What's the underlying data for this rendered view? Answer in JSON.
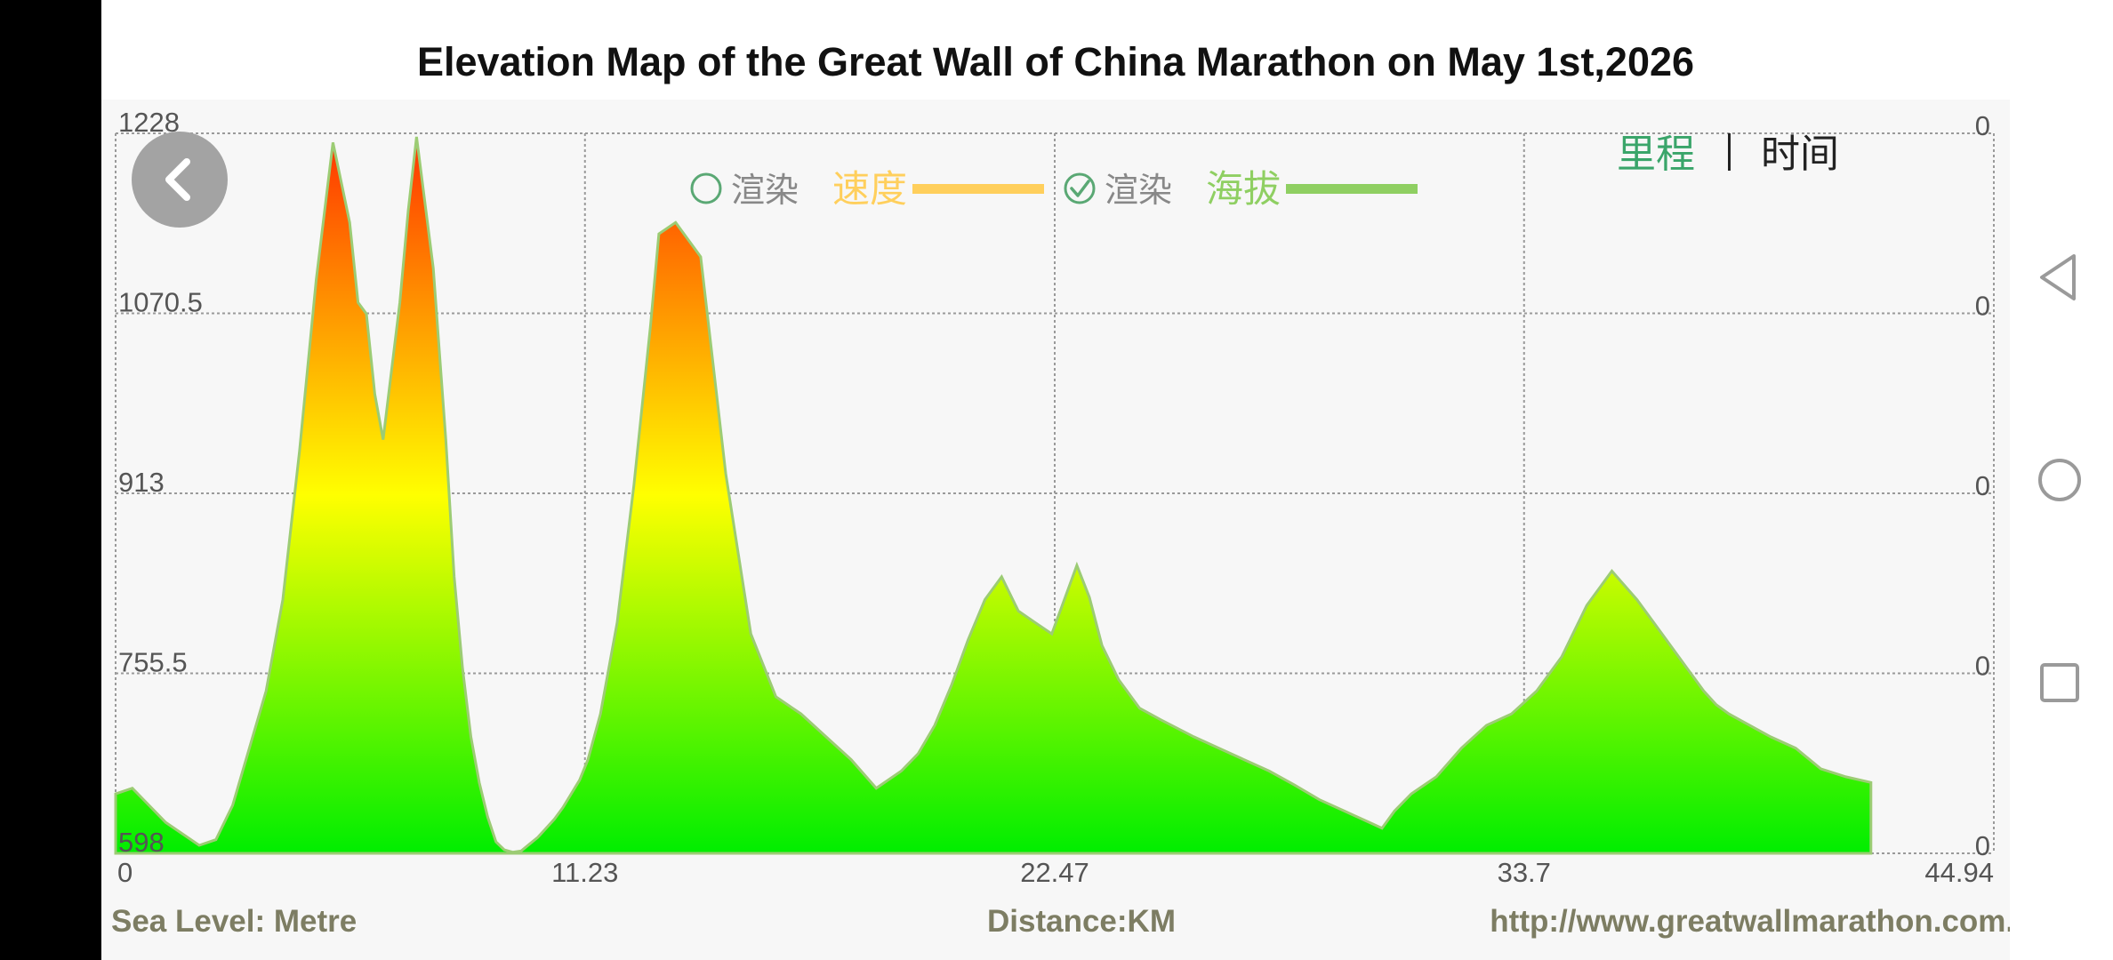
{
  "title": "Elevation Map of the Great Wall of China Marathon on May 1st,2026",
  "footer": {
    "left": "Sea Level: Metre",
    "center": "Distance:KM",
    "right": "http://www.greatwallmarathon.com.cn"
  },
  "legend": {
    "render_label": "渲染",
    "speed_label": "速度",
    "elevation_label": "海拔",
    "speed_checked": false,
    "elevation_checked": true,
    "speed_color": "#ffcf5c",
    "elevation_color": "#8fcf62"
  },
  "toggle": {
    "mileage_label": "里程",
    "time_label": "时间",
    "active": "mileage"
  },
  "colors": {
    "gradient_top": "#ff3300",
    "gradient_mid": "#ffff00",
    "gradient_bottom": "#00ee00",
    "outline": "#9ccc74",
    "grid": "#9a9a9a"
  },
  "chart_data": {
    "type": "area",
    "title": "Elevation Map of the Great Wall of China Marathon on May 1st,2026",
    "xlabel": "Distance:KM",
    "ylabel": "Sea Level: Metre",
    "xlim": [
      0,
      44.94
    ],
    "ylim": [
      598,
      1228
    ],
    "x_ticks": [
      "0",
      "11.23",
      "22.47",
      "33.7",
      "44.94"
    ],
    "y_ticks": [
      "1228",
      "1070.5",
      "913",
      "755.5",
      "598"
    ],
    "y2_ticks": [
      "0",
      "0",
      "0",
      "0",
      "0"
    ],
    "grid": true,
    "series": [
      {
        "name": "海拔",
        "x": [
          0,
          0.4,
          0.8,
          1.2,
          1.6,
          2.0,
          2.4,
          2.8,
          3.2,
          3.6,
          4.0,
          4.4,
          4.8,
          5.2,
          5.6,
          5.8,
          6.0,
          6.2,
          6.4,
          6.6,
          6.8,
          7.0,
          7.2,
          7.6,
          7.9,
          8.1,
          8.3,
          8.5,
          8.7,
          8.9,
          9.1,
          9.3,
          9.5,
          9.7,
          9.9,
          10.1,
          10.3,
          10.5,
          10.7,
          10.9,
          11.1,
          11.3,
          11.6,
          12.0,
          12.4,
          12.8,
          13.0,
          13.4,
          14.0,
          14.6,
          15.2,
          15.8,
          16.4,
          17.0,
          17.6,
          18.2,
          18.8,
          19.2,
          19.6,
          20.0,
          20.4,
          20.8,
          21.2,
          21.6,
          22.0,
          22.4,
          22.7,
          23.0,
          23.3,
          23.6,
          24.0,
          24.5,
          25.0,
          25.8,
          26.4,
          27.0,
          27.6,
          28.2,
          28.8,
          29.4,
          30.0,
          30.3,
          30.6,
          31.0,
          31.6,
          32.2,
          32.8,
          33.4,
          34.0,
          34.6,
          35.2,
          35.8,
          36.4,
          37.0,
          37.6,
          38.0,
          38.3,
          38.6,
          39.0,
          39.6,
          40.2,
          40.8,
          41.4,
          42.0
        ],
        "y": [
          650,
          655,
          640,
          625,
          615,
          605,
          610,
          640,
          690,
          740,
          820,
          950,
          1100,
          1220,
          1150,
          1080,
          1070,
          1000,
          960,
          1020,
          1080,
          1160,
          1225,
          1110,
          960,
          840,
          760,
          700,
          660,
          630,
          608,
          601,
          599,
          600,
          606,
          612,
          620,
          628,
          638,
          650,
          662,
          680,
          720,
          800,
          920,
          1060,
          1140,
          1150,
          1120,
          930,
          790,
          735,
          720,
          700,
          680,
          655,
          670,
          685,
          710,
          745,
          785,
          820,
          840,
          810,
          800,
          790,
          820,
          850,
          822,
          780,
          750,
          725,
          715,
          700,
          690,
          680,
          670,
          658,
          645,
          635,
          625,
          620,
          635,
          650,
          665,
          690,
          710,
          720,
          740,
          770,
          815,
          845,
          820,
          790,
          760,
          740,
          728,
          720,
          712,
          700,
          690,
          672,
          665,
          660
        ]
      }
    ]
  }
}
